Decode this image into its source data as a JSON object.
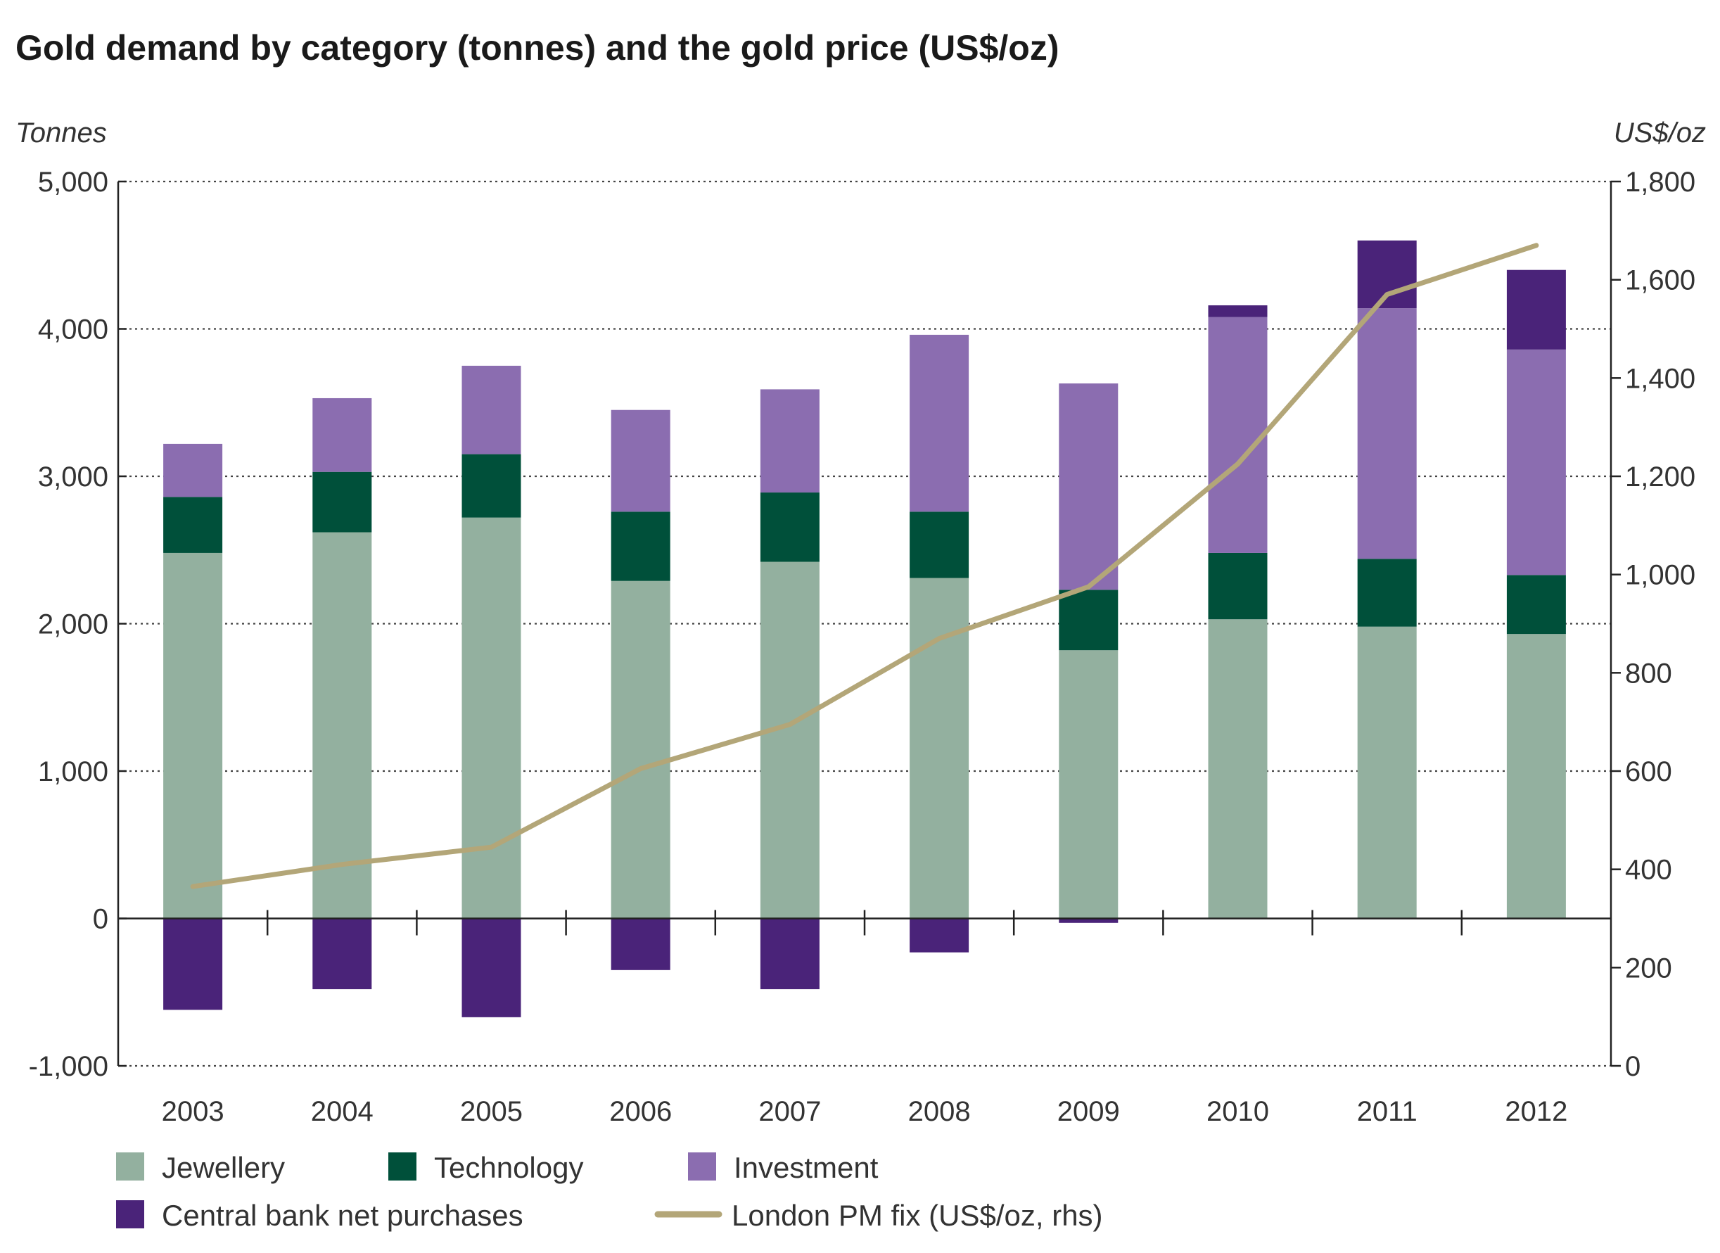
{
  "chart_data": {
    "type": "bar",
    "stacked": true,
    "title": "Gold demand by category (tonnes) and the gold price (US$/oz)",
    "ylabel_left": "Tonnes",
    "ylabel_right": "US$/oz",
    "ylim_left": [
      -1000,
      5000
    ],
    "ylim_right": [
      0,
      1800
    ],
    "yticks_left": [
      -1000,
      0,
      1000,
      2000,
      3000,
      4000,
      5000
    ],
    "yticks_left_labels": [
      "-1,000",
      "0",
      "1,000",
      "2,000",
      "3,000",
      "4,000",
      "5,000"
    ],
    "yticks_right": [
      0,
      200,
      400,
      600,
      800,
      1000,
      1200,
      1400,
      1600,
      1800
    ],
    "yticks_right_labels": [
      "0",
      "200",
      "400",
      "600",
      "800",
      "1,000",
      "1,200",
      "1,400",
      "1,600",
      "1,800"
    ],
    "grid": "horizontal dotted",
    "legend_position": "bottom",
    "categories": [
      "2003",
      "2004",
      "2005",
      "2006",
      "2007",
      "2008",
      "2009",
      "2010",
      "2011",
      "2012"
    ],
    "series": [
      {
        "name": "Jewellery",
        "color": "#93b09f",
        "values": [
          2480,
          2620,
          2720,
          2290,
          2420,
          2310,
          1820,
          2030,
          1980,
          1930
        ]
      },
      {
        "name": "Technology",
        "color": "#00503a",
        "values": [
          380,
          410,
          430,
          470,
          470,
          450,
          410,
          450,
          460,
          400
        ]
      },
      {
        "name": "Investment",
        "color": "#8b6db0",
        "values": [
          360,
          500,
          600,
          690,
          700,
          1200,
          1400,
          1600,
          1700,
          1530
        ]
      },
      {
        "name": "Central bank net purchases",
        "color": "#4a2379",
        "values": [
          -620,
          -480,
          -670,
          -350,
          -480,
          -230,
          -30,
          80,
          460,
          540
        ]
      }
    ],
    "line_series": {
      "name": "London PM fix (US$/oz, rhs)",
      "color": "#b3a678",
      "axis": "right",
      "values": [
        365,
        410,
        445,
        605,
        695,
        870,
        975,
        1225,
        1570,
        1670
      ]
    }
  }
}
